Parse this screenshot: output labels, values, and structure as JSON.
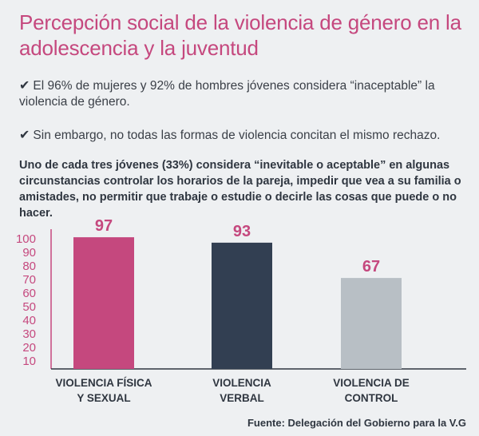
{
  "title": "Percepción social de la violencia de género en la adolescencia y la juventud",
  "bullets": [
    "El 96% de mujeres y 92% de hombres jóvenes considera “inaceptable” la violencia de género.",
    "Sin embargo, no todas las formas de violencia concitan el mismo rechazo."
  ],
  "check_icon": "✔",
  "paragraph": "Uno de cada tres jóvenes (33%) considera “inevitable o aceptable” en algunas circunstancias controlar los horarios de la pareja, impedir que vea a su familia o amistades, no permitir que trabaje o estudie o decirle las cosas que puede o no hacer.",
  "source": "Fuente: Delegación del Gobierno para la V.G",
  "colors": {
    "accent": "#c5487e",
    "bar1": "#c5487e",
    "bar2": "#323f52",
    "bar3": "#b8bfc5",
    "background": "#eef0f2"
  },
  "chart_data": {
    "type": "bar",
    "categories": [
      [
        "VIOLENCIA FÍSICA",
        "Y SEXUAL"
      ],
      [
        "VIOLENCIA",
        "VERBAL"
      ],
      [
        "VIOLENCIA DE",
        "CONTROL"
      ]
    ],
    "values": [
      97,
      93,
      67
    ],
    "value_labels": [
      "97",
      "93",
      "67"
    ],
    "yticks": [
      "100",
      "90",
      "80",
      "70",
      "60",
      "50",
      "40",
      "30",
      "20",
      "10"
    ],
    "ylim": [
      0,
      100
    ],
    "grid": false,
    "legend": "none"
  }
}
